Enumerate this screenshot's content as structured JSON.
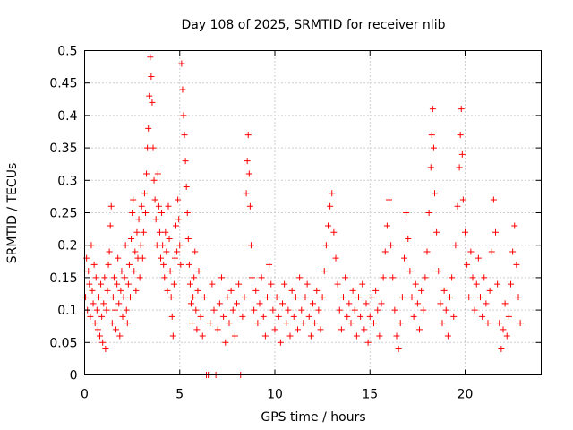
{
  "chart_data": {
    "type": "scatter",
    "title": "Day 108 of 2025, SRMTID for receiver nlib",
    "xlabel": "GPS time / hours",
    "ylabel": "SRMTID / TECUs",
    "xlim": [
      0,
      24
    ],
    "ylim": [
      0,
      0.5
    ],
    "xticks": [
      0,
      5,
      10,
      15,
      20
    ],
    "xtick_labels": [
      "0",
      "5",
      "10",
      "15",
      "20"
    ],
    "yticks": [
      0,
      0.05,
      0.1,
      0.15,
      0.2,
      0.25,
      0.3,
      0.35,
      0.4,
      0.45,
      0.5
    ],
    "ytick_labels": [
      "0",
      "0.05",
      "0.1",
      "0.15",
      "0.2",
      "0.25",
      "0.3",
      "0.35",
      "0.4",
      "0.45",
      "0.5"
    ],
    "grid": true,
    "marker": "+",
    "color": "#ff0000",
    "series": [
      {
        "points": [
          [
            0.05,
            0.12
          ],
          [
            0.1,
            0.18
          ],
          [
            0.15,
            0.1
          ],
          [
            0.2,
            0.16
          ],
          [
            0.25,
            0.14
          ],
          [
            0.3,
            0.09
          ],
          [
            0.35,
            0.2
          ],
          [
            0.4,
            0.13
          ],
          [
            0.45,
            0.11
          ],
          [
            0.5,
            0.17
          ],
          [
            0.55,
            0.08
          ],
          [
            0.6,
            0.15
          ],
          [
            0.65,
            0.1
          ],
          [
            0.7,
            0.07
          ],
          [
            0.75,
            0.12
          ],
          [
            0.8,
            0.06
          ],
          [
            0.85,
            0.14
          ],
          [
            0.9,
            0.09
          ],
          [
            0.95,
            0.05
          ],
          [
            1.0,
            0.11
          ],
          [
            1.05,
            0.15
          ],
          [
            1.1,
            0.04
          ],
          [
            1.15,
            0.1
          ],
          [
            1.2,
            0.13
          ],
          [
            1.25,
            0.17
          ],
          [
            1.3,
            0.19
          ],
          [
            1.35,
            0.23
          ],
          [
            1.4,
            0.26
          ],
          [
            1.45,
            0.08
          ],
          [
            1.5,
            0.12
          ],
          [
            1.55,
            0.15
          ],
          [
            1.6,
            0.1
          ],
          [
            1.65,
            0.07
          ],
          [
            1.7,
            0.14
          ],
          [
            1.75,
            0.18
          ],
          [
            1.8,
            0.11
          ],
          [
            1.85,
            0.06
          ],
          [
            1.9,
            0.13
          ],
          [
            1.95,
            0.16
          ],
          [
            2.0,
            0.09
          ],
          [
            2.05,
            0.12
          ],
          [
            2.1,
            0.15
          ],
          [
            2.15,
            0.2
          ],
          [
            2.2,
            0.1
          ],
          [
            2.25,
            0.08
          ],
          [
            2.3,
            0.14
          ],
          [
            2.35,
            0.17
          ],
          [
            2.4,
            0.12
          ],
          [
            2.45,
            0.21
          ],
          [
            2.5,
            0.25
          ],
          [
            2.55,
            0.27
          ],
          [
            2.6,
            0.16
          ],
          [
            2.65,
            0.19
          ],
          [
            2.7,
            0.13
          ],
          [
            2.75,
            0.22
          ],
          [
            2.8,
            0.18
          ],
          [
            2.85,
            0.24
          ],
          [
            2.9,
            0.15
          ],
          [
            2.95,
            0.2
          ],
          [
            3.0,
            0.26
          ],
          [
            3.05,
            0.18
          ],
          [
            3.1,
            0.22
          ],
          [
            3.15,
            0.28
          ],
          [
            3.2,
            0.25
          ],
          [
            3.25,
            0.31
          ],
          [
            3.3,
            0.35
          ],
          [
            3.35,
            0.38
          ],
          [
            3.4,
            0.43
          ],
          [
            3.45,
            0.49
          ],
          [
            3.5,
            0.46
          ],
          [
            3.55,
            0.42
          ],
          [
            3.6,
            0.35
          ],
          [
            3.65,
            0.3
          ],
          [
            3.7,
            0.27
          ],
          [
            3.75,
            0.24
          ],
          [
            3.8,
            0.2
          ],
          [
            3.85,
            0.31
          ],
          [
            3.9,
            0.26
          ],
          [
            3.95,
            0.22
          ],
          [
            4.0,
            0.18
          ],
          [
            4.05,
            0.25
          ],
          [
            4.1,
            0.2
          ],
          [
            4.15,
            0.17
          ],
          [
            4.2,
            0.15
          ],
          [
            4.25,
            0.22
          ],
          [
            4.3,
            0.19
          ],
          [
            4.35,
            0.13
          ],
          [
            4.4,
            0.26
          ],
          [
            4.45,
            0.21
          ],
          [
            4.5,
            0.16
          ],
          [
            4.55,
            0.12
          ],
          [
            4.6,
            0.09
          ],
          [
            4.65,
            0.06
          ],
          [
            4.7,
            0.14
          ],
          [
            4.75,
            0.18
          ],
          [
            4.8,
            0.23
          ],
          [
            4.85,
            0.19
          ],
          [
            4.9,
            0.27
          ],
          [
            4.95,
            0.24
          ],
          [
            5.0,
            0.2
          ],
          [
            5.05,
            0.17
          ],
          [
            5.1,
            0.48
          ],
          [
            5.15,
            0.44
          ],
          [
            5.2,
            0.4
          ],
          [
            5.25,
            0.37
          ],
          [
            5.3,
            0.33
          ],
          [
            5.35,
            0.29
          ],
          [
            5.4,
            0.25
          ],
          [
            5.45,
            0.21
          ],
          [
            5.5,
            0.17
          ],
          [
            5.55,
            0.14
          ],
          [
            5.6,
            0.11
          ],
          [
            5.65,
            0.08
          ],
          [
            5.7,
            0.12
          ],
          [
            5.75,
            0.15
          ],
          [
            5.8,
            0.19
          ],
          [
            5.85,
            0.1
          ],
          [
            5.9,
            0.07
          ],
          [
            5.95,
            0.13
          ],
          [
            6.0,
            0.16
          ],
          [
            6.1,
            0.09
          ],
          [
            6.2,
            0.06
          ],
          [
            6.3,
            0.12
          ],
          [
            6.4,
            0.0
          ],
          [
            6.5,
            0.0
          ],
          [
            6.6,
            0.08
          ],
          [
            6.7,
            0.14
          ],
          [
            6.8,
            0.1
          ],
          [
            6.9,
            0.0
          ],
          [
            7.0,
            0.07
          ],
          [
            7.1,
            0.11
          ],
          [
            7.2,
            0.15
          ],
          [
            7.3,
            0.09
          ],
          [
            7.4,
            0.05
          ],
          [
            7.5,
            0.12
          ],
          [
            7.6,
            0.08
          ],
          [
            7.7,
            0.13
          ],
          [
            7.8,
            0.1
          ],
          [
            7.9,
            0.06
          ],
          [
            8.0,
            0.11
          ],
          [
            8.1,
            0.14
          ],
          [
            8.2,
            0.0
          ],
          [
            8.3,
            0.09
          ],
          [
            8.4,
            0.12
          ],
          [
            8.5,
            0.28
          ],
          [
            8.55,
            0.33
          ],
          [
            8.6,
            0.37
          ],
          [
            8.65,
            0.31
          ],
          [
            8.7,
            0.26
          ],
          [
            8.75,
            0.2
          ],
          [
            8.8,
            0.15
          ],
          [
            8.9,
            0.1
          ],
          [
            9.0,
            0.13
          ],
          [
            9.1,
            0.08
          ],
          [
            9.2,
            0.11
          ],
          [
            9.3,
            0.15
          ],
          [
            9.4,
            0.09
          ],
          [
            9.5,
            0.06
          ],
          [
            9.6,
            0.12
          ],
          [
            9.7,
            0.17
          ],
          [
            9.8,
            0.14
          ],
          [
            9.9,
            0.1
          ],
          [
            10.0,
            0.07
          ],
          [
            10.1,
            0.12
          ],
          [
            10.2,
            0.09
          ],
          [
            10.3,
            0.05
          ],
          [
            10.4,
            0.11
          ],
          [
            10.5,
            0.14
          ],
          [
            10.6,
            0.08
          ],
          [
            10.7,
            0.1
          ],
          [
            10.8,
            0.06
          ],
          [
            10.9,
            0.13
          ],
          [
            11.0,
            0.09
          ],
          [
            11.1,
            0.12
          ],
          [
            11.2,
            0.07
          ],
          [
            11.3,
            0.15
          ],
          [
            11.4,
            0.1
          ],
          [
            11.5,
            0.08
          ],
          [
            11.6,
            0.12
          ],
          [
            11.7,
            0.14
          ],
          [
            11.8,
            0.09
          ],
          [
            11.9,
            0.06
          ],
          [
            12.0,
            0.11
          ],
          [
            12.1,
            0.08
          ],
          [
            12.2,
            0.13
          ],
          [
            12.3,
            0.1
          ],
          [
            12.4,
            0.07
          ],
          [
            12.5,
            0.12
          ],
          [
            12.6,
            0.16
          ],
          [
            12.7,
            0.2
          ],
          [
            12.8,
            0.23
          ],
          [
            12.9,
            0.26
          ],
          [
            13.0,
            0.28
          ],
          [
            13.1,
            0.22
          ],
          [
            13.2,
            0.18
          ],
          [
            13.3,
            0.14
          ],
          [
            13.4,
            0.1
          ],
          [
            13.5,
            0.07
          ],
          [
            13.6,
            0.12
          ],
          [
            13.7,
            0.15
          ],
          [
            13.8,
            0.09
          ],
          [
            13.9,
            0.11
          ],
          [
            14.0,
            0.08
          ],
          [
            14.1,
            0.13
          ],
          [
            14.2,
            0.1
          ],
          [
            14.3,
            0.06
          ],
          [
            14.4,
            0.12
          ],
          [
            14.5,
            0.09
          ],
          [
            14.6,
            0.14
          ],
          [
            14.7,
            0.07
          ],
          [
            14.8,
            0.11
          ],
          [
            14.9,
            0.05
          ],
          [
            15.0,
            0.09
          ],
          [
            15.1,
            0.12
          ],
          [
            15.2,
            0.08
          ],
          [
            15.3,
            0.13
          ],
          [
            15.4,
            0.1
          ],
          [
            15.5,
            0.06
          ],
          [
            15.6,
            0.11
          ],
          [
            15.7,
            0.15
          ],
          [
            15.8,
            0.19
          ],
          [
            15.9,
            0.23
          ],
          [
            16.0,
            0.27
          ],
          [
            16.1,
            0.2
          ],
          [
            16.2,
            0.15
          ],
          [
            16.3,
            0.1
          ],
          [
            16.4,
            0.06
          ],
          [
            16.5,
            0.04
          ],
          [
            16.6,
            0.08
          ],
          [
            16.7,
            0.12
          ],
          [
            16.8,
            0.18
          ],
          [
            16.9,
            0.25
          ],
          [
            17.0,
            0.21
          ],
          [
            17.1,
            0.16
          ],
          [
            17.2,
            0.12
          ],
          [
            17.3,
            0.09
          ],
          [
            17.4,
            0.14
          ],
          [
            17.5,
            0.11
          ],
          [
            17.6,
            0.07
          ],
          [
            17.7,
            0.13
          ],
          [
            17.8,
            0.1
          ],
          [
            17.9,
            0.15
          ],
          [
            18.0,
            0.19
          ],
          [
            18.1,
            0.25
          ],
          [
            18.2,
            0.32
          ],
          [
            18.25,
            0.37
          ],
          [
            18.3,
            0.41
          ],
          [
            18.35,
            0.35
          ],
          [
            18.4,
            0.28
          ],
          [
            18.5,
            0.22
          ],
          [
            18.6,
            0.16
          ],
          [
            18.7,
            0.11
          ],
          [
            18.8,
            0.08
          ],
          [
            18.9,
            0.13
          ],
          [
            19.0,
            0.1
          ],
          [
            19.1,
            0.06
          ],
          [
            19.2,
            0.12
          ],
          [
            19.3,
            0.15
          ],
          [
            19.4,
            0.09
          ],
          [
            19.5,
            0.2
          ],
          [
            19.6,
            0.26
          ],
          [
            19.7,
            0.32
          ],
          [
            19.75,
            0.37
          ],
          [
            19.8,
            0.41
          ],
          [
            19.85,
            0.34
          ],
          [
            19.9,
            0.27
          ],
          [
            20.0,
            0.22
          ],
          [
            20.1,
            0.17
          ],
          [
            20.2,
            0.12
          ],
          [
            20.3,
            0.19
          ],
          [
            20.4,
            0.15
          ],
          [
            20.5,
            0.1
          ],
          [
            20.6,
            0.14
          ],
          [
            20.7,
            0.18
          ],
          [
            20.8,
            0.12
          ],
          [
            20.9,
            0.09
          ],
          [
            21.0,
            0.15
          ],
          [
            21.1,
            0.11
          ],
          [
            21.2,
            0.08
          ],
          [
            21.3,
            0.13
          ],
          [
            21.4,
            0.19
          ],
          [
            21.5,
            0.27
          ],
          [
            21.6,
            0.22
          ],
          [
            21.7,
            0.14
          ],
          [
            21.8,
            0.08
          ],
          [
            21.9,
            0.04
          ],
          [
            22.0,
            0.07
          ],
          [
            22.1,
            0.11
          ],
          [
            22.2,
            0.06
          ],
          [
            22.3,
            0.09
          ],
          [
            22.4,
            0.14
          ],
          [
            22.5,
            0.19
          ],
          [
            22.6,
            0.23
          ],
          [
            22.7,
            0.17
          ],
          [
            22.8,
            0.12
          ],
          [
            22.9,
            0.08
          ]
        ]
      }
    ]
  }
}
